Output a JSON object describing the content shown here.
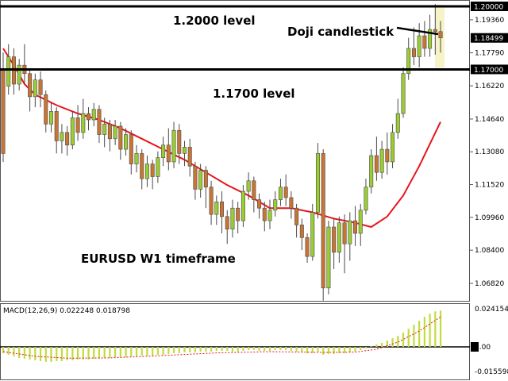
{
  "chart_data": {
    "type": "candlestick",
    "instrument": "EURUSD",
    "annotations": {
      "level_high_label": "1.2000 level",
      "level_low_label": "1.1700 level",
      "doji_label": "Doji candlestick",
      "timeframe_label": "EURUSD W1 timeframe"
    },
    "price_axis": {
      "ticks": [
        "1.19360",
        "1.17790",
        "1.16220",
        "1.14640",
        "1.13080",
        "1.11520",
        "1.09960",
        "1.08400",
        "1.06820"
      ],
      "ylim": [
        1.0582,
        1.2077
      ]
    },
    "levels": [
      {
        "price": 1.2,
        "label": "1.20000"
      },
      {
        "price": 1.17,
        "label": "1.17000"
      }
    ],
    "current_price": {
      "price": 1.18499,
      "label": "1.18499"
    },
    "candles": [
      [
        1.17,
        1.13,
        1.178,
        1.126
      ],
      [
        1.162,
        1.176,
        1.182,
        1.158
      ],
      [
        1.176,
        1.163,
        1.18,
        1.158
      ],
      [
        1.163,
        1.172,
        1.175,
        1.16
      ],
      [
        1.172,
        1.168,
        1.182,
        1.163
      ],
      [
        1.168,
        1.157,
        1.17,
        1.15
      ],
      [
        1.157,
        1.165,
        1.168,
        1.152
      ],
      [
        1.165,
        1.158,
        1.169,
        1.152
      ],
      [
        1.158,
        1.144,
        1.16,
        1.14
      ],
      [
        1.144,
        1.15,
        1.154,
        1.14
      ],
      [
        1.15,
        1.136,
        1.152,
        1.13
      ],
      [
        1.136,
        1.14,
        1.144,
        1.13
      ],
      [
        1.14,
        1.134,
        1.143,
        1.129
      ],
      [
        1.134,
        1.147,
        1.15,
        1.132
      ],
      [
        1.147,
        1.14,
        1.153,
        1.136
      ],
      [
        1.14,
        1.149,
        1.156,
        1.137
      ],
      [
        1.149,
        1.146,
        1.152,
        1.141
      ],
      [
        1.146,
        1.151,
        1.154,
        1.143
      ],
      [
        1.151,
        1.139,
        1.153,
        1.135
      ],
      [
        1.139,
        1.144,
        1.147,
        1.133
      ],
      [
        1.144,
        1.137,
        1.146,
        1.131
      ],
      [
        1.137,
        1.143,
        1.146,
        1.134
      ],
      [
        1.143,
        1.132,
        1.145,
        1.127
      ],
      [
        1.132,
        1.139,
        1.142,
        1.129
      ],
      [
        1.139,
        1.125,
        1.141,
        1.12
      ],
      [
        1.125,
        1.13,
        1.134,
        1.121
      ],
      [
        1.13,
        1.118,
        1.132,
        1.113
      ],
      [
        1.118,
        1.125,
        1.129,
        1.114
      ],
      [
        1.125,
        1.119,
        1.127,
        1.113
      ],
      [
        1.119,
        1.128,
        1.131,
        1.116
      ],
      [
        1.128,
        1.134,
        1.138,
        1.124
      ],
      [
        1.134,
        1.126,
        1.142,
        1.122
      ],
      [
        1.126,
        1.141,
        1.145,
        1.123
      ],
      [
        1.141,
        1.13,
        1.144,
        1.125
      ],
      [
        1.13,
        1.133,
        1.136,
        1.124
      ],
      [
        1.133,
        1.124,
        1.137,
        1.119
      ],
      [
        1.124,
        1.113,
        1.126,
        1.108
      ],
      [
        1.113,
        1.122,
        1.125,
        1.109
      ],
      [
        1.122,
        1.114,
        1.124,
        1.104
      ],
      [
        1.114,
        1.101,
        1.117,
        1.096
      ],
      [
        1.101,
        1.107,
        1.11,
        1.096
      ],
      [
        1.107,
        1.1,
        1.112,
        1.092
      ],
      [
        1.1,
        1.094,
        1.103,
        1.087
      ],
      [
        1.094,
        1.104,
        1.108,
        1.09
      ],
      [
        1.104,
        1.098,
        1.107,
        1.092
      ],
      [
        1.098,
        1.112,
        1.115,
        1.095
      ],
      [
        1.112,
        1.117,
        1.121,
        1.108
      ],
      [
        1.117,
        1.108,
        1.119,
        1.102
      ],
      [
        1.108,
        1.104,
        1.111,
        1.099
      ],
      [
        1.104,
        1.098,
        1.107,
        1.093
      ],
      [
        1.098,
        1.103,
        1.108,
        1.094
      ],
      [
        1.103,
        1.108,
        1.112,
        1.1
      ],
      [
        1.108,
        1.114,
        1.118,
        1.105
      ],
      [
        1.114,
        1.109,
        1.12,
        1.105
      ],
      [
        1.109,
        1.104,
        1.112,
        1.099
      ],
      [
        1.104,
        1.096,
        1.106,
        1.09
      ],
      [
        1.096,
        1.09,
        1.099,
        1.084
      ],
      [
        1.09,
        1.081,
        1.092,
        1.078
      ],
      [
        1.081,
        1.102,
        1.106,
        1.079
      ],
      [
        1.102,
        1.13,
        1.135,
        1.099
      ],
      [
        1.13,
        1.066,
        1.132,
        1.06
      ],
      [
        1.066,
        1.095,
        1.098,
        1.063
      ],
      [
        1.095,
        1.083,
        1.099,
        1.075
      ],
      [
        1.083,
        1.097,
        1.1,
        1.078
      ],
      [
        1.097,
        1.087,
        1.101,
        1.073
      ],
      [
        1.087,
        1.098,
        1.102,
        1.079
      ],
      [
        1.098,
        1.092,
        1.105,
        1.086
      ],
      [
        1.092,
        1.103,
        1.106,
        1.086
      ],
      [
        1.103,
        1.114,
        1.118,
        1.101
      ],
      [
        1.114,
        1.129,
        1.132,
        1.111
      ],
      [
        1.129,
        1.121,
        1.138,
        1.117
      ],
      [
        1.121,
        1.132,
        1.136,
        1.118
      ],
      [
        1.132,
        1.126,
        1.14,
        1.12
      ],
      [
        1.126,
        1.14,
        1.144,
        1.123
      ],
      [
        1.14,
        1.149,
        1.156,
        1.137
      ],
      [
        1.149,
        1.168,
        1.171,
        1.147
      ],
      [
        1.168,
        1.18,
        1.185,
        1.165
      ],
      [
        1.18,
        1.176,
        1.19,
        1.172
      ],
      [
        1.176,
        1.186,
        1.192,
        1.171
      ],
      [
        1.186,
        1.18,
        1.193,
        1.176
      ],
      [
        1.18,
        1.189,
        1.196,
        1.176
      ],
      [
        1.189,
        1.188,
        1.2011,
        1.177
      ],
      [
        1.188,
        1.185,
        1.193,
        1.178
      ]
    ],
    "sma": [
      [
        0,
        1.18
      ],
      [
        2,
        1.172
      ],
      [
        4,
        1.163
      ],
      [
        6,
        1.158
      ],
      [
        10,
        1.153
      ],
      [
        14,
        1.149
      ],
      [
        18,
        1.146
      ],
      [
        22,
        1.142
      ],
      [
        26,
        1.137
      ],
      [
        30,
        1.132
      ],
      [
        34,
        1.127
      ],
      [
        38,
        1.121
      ],
      [
        42,
        1.115
      ],
      [
        46,
        1.11
      ],
      [
        50,
        1.104
      ],
      [
        54,
        1.104
      ],
      [
        58,
        1.102
      ],
      [
        62,
        1.099
      ],
      [
        66,
        1.097
      ],
      [
        69,
        1.095
      ],
      [
        72,
        1.1
      ],
      [
        75,
        1.11
      ],
      [
        78,
        1.124
      ],
      [
        82,
        1.145
      ]
    ],
    "macd": {
      "label": "MACD(12,26,9) 0.022248 0.018798",
      "ticks": [
        "0.024154",
        "0.00",
        "-0.015598"
      ],
      "zero_label": "0.00",
      "hist": [
        -0.004,
        -0.005,
        -0.006,
        -0.007,
        -0.0075,
        -0.008,
        -0.0085,
        -0.009,
        -0.0095,
        -0.0095,
        -0.009,
        -0.009,
        -0.0085,
        -0.0085,
        -0.008,
        -0.008,
        -0.008,
        -0.0075,
        -0.0075,
        -0.007,
        -0.007,
        -0.0065,
        -0.0065,
        -0.0065,
        -0.006,
        -0.006,
        -0.0055,
        -0.0055,
        -0.0055,
        -0.005,
        -0.005,
        -0.0045,
        -0.004,
        -0.004,
        -0.0035,
        -0.0035,
        -0.0035,
        -0.003,
        -0.003,
        -0.003,
        -0.0025,
        -0.0025,
        -0.0025,
        -0.003,
        -0.003,
        -0.0025,
        -0.002,
        -0.002,
        -0.0025,
        -0.0025,
        -0.0025,
        -0.002,
        -0.002,
        -0.002,
        -0.0025,
        -0.003,
        -0.0035,
        -0.004,
        -0.004,
        -0.003,
        -0.005,
        -0.0045,
        -0.0045,
        -0.004,
        -0.004,
        -0.0035,
        -0.003,
        -0.002,
        -0.001,
        0.0005,
        0.0015,
        0.0025,
        0.004,
        0.0055,
        0.007,
        0.009,
        0.0115,
        0.014,
        0.0165,
        0.019,
        0.021,
        0.0225,
        0.023
      ],
      "signal": [
        [
          0,
          -0.003
        ],
        [
          6,
          -0.006
        ],
        [
          12,
          -0.0072
        ],
        [
          20,
          -0.007
        ],
        [
          30,
          -0.0055
        ],
        [
          40,
          -0.0038
        ],
        [
          50,
          -0.003
        ],
        [
          60,
          -0.0035
        ],
        [
          66,
          -0.0033
        ],
        [
          70,
          -0.0015
        ],
        [
          74,
          0.003
        ],
        [
          78,
          0.01
        ],
        [
          82,
          0.019
        ]
      ]
    },
    "colors": {
      "bull_body": "#9acd32",
      "bear_body": "#c87533",
      "wick": "#4a4a4a",
      "sma": "#e8141c",
      "level_line": "#000000",
      "macd_hist": "#c0dc3c",
      "macd_signal": "#e8141c",
      "doji_highlight": "#f6f3c6",
      "price_tag_bg": "#000000",
      "price_tag_text": "#ffffff"
    }
  }
}
